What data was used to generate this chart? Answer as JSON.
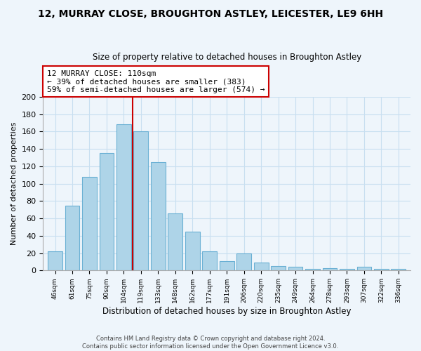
{
  "title": "12, MURRAY CLOSE, BROUGHTON ASTLEY, LEICESTER, LE9 6HH",
  "subtitle": "Size of property relative to detached houses in Broughton Astley",
  "xlabel": "Distribution of detached houses by size in Broughton Astley",
  "ylabel": "Number of detached properties",
  "bar_labels": [
    "46sqm",
    "61sqm",
    "75sqm",
    "90sqm",
    "104sqm",
    "119sqm",
    "133sqm",
    "148sqm",
    "162sqm",
    "177sqm",
    "191sqm",
    "206sqm",
    "220sqm",
    "235sqm",
    "249sqm",
    "264sqm",
    "278sqm",
    "293sqm",
    "307sqm",
    "322sqm",
    "336sqm"
  ],
  "bar_values": [
    22,
    75,
    108,
    135,
    168,
    160,
    125,
    66,
    45,
    22,
    11,
    20,
    9,
    5,
    4,
    2,
    3,
    2,
    4,
    2,
    2
  ],
  "bar_color": "#aed4e8",
  "bar_edge_color": "#6ab0d4",
  "vline_x_index": 4.5,
  "vline_color": "#cc0000",
  "annotation_line1": "12 MURRAY CLOSE: 110sqm",
  "annotation_line2": "← 39% of detached houses are smaller (383)",
  "annotation_line3": "59% of semi-detached houses are larger (574) →",
  "annotation_box_color": "#cc0000",
  "annotation_box_facecolor": "white",
  "ylim": [
    0,
    200
  ],
  "yticks": [
    0,
    20,
    40,
    60,
    80,
    100,
    120,
    140,
    160,
    180,
    200
  ],
  "footer_line1": "Contains HM Land Registry data © Crown copyright and database right 2024.",
  "footer_line2": "Contains public sector information licensed under the Open Government Licence v3.0.",
  "bg_color": "#eef5fb",
  "grid_color": "#c8dff0"
}
